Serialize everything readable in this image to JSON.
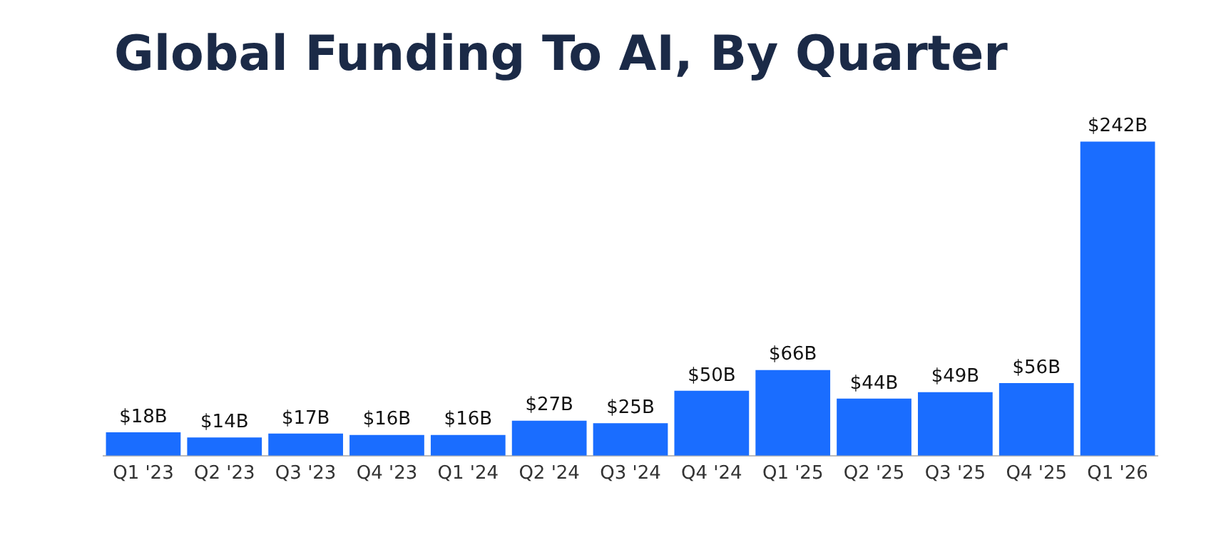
{
  "chart_data": {
    "type": "bar",
    "title": "Global Funding To AI, By Quarter",
    "categories": [
      "Q1 '23",
      "Q2 '23",
      "Q3 '23",
      "Q4 '23",
      "Q1 '24",
      "Q2 '24",
      "Q3 '24",
      "Q4 '24",
      "Q1 '25",
      "Q2 '25",
      "Q3 '25",
      "Q4 '25",
      "Q1 '26"
    ],
    "values": [
      18,
      14,
      17,
      16,
      16,
      27,
      25,
      50,
      66,
      44,
      49,
      56,
      242
    ],
    "value_labels": [
      "$18B",
      "$14B",
      "$17B",
      "$16B",
      "$16B",
      "$27B",
      "$25B",
      "$50B",
      "$66B",
      "$44B",
      "$49B",
      "$56B",
      "$242B"
    ],
    "color": "#1a6dff",
    "grid": false,
    "legend": false,
    "tick_labels": "x"
  }
}
